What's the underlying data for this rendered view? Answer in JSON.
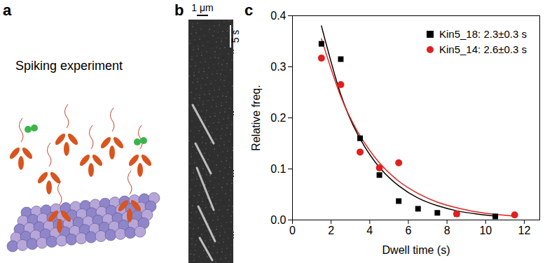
{
  "chart_data": {
    "type": "scatter",
    "x_label": "Dwell time (s)",
    "y_label": "Relative freq.",
    "series": [
      {
        "name": "Kin5_18: 2.3±0.3 s",
        "color": "#000000",
        "marker": "square",
        "x": [
          1.5,
          2.5,
          3.5,
          4.5,
          5.5,
          6.5,
          7.5,
          8.5,
          10.5
        ],
        "values": [
          0.345,
          0.315,
          0.16,
          0.088,
          0.037,
          0.022,
          0.014,
          0.012,
          0.007
        ],
        "fit": {
          "x": [
            1.5,
            2.5,
            3.5,
            4.5,
            5.5,
            6.5,
            7.5,
            8.5,
            9.5,
            10.5
          ],
          "values": [
            0.38,
            0.246,
            0.159,
            0.103,
            0.067,
            0.043,
            0.028,
            0.018,
            0.012,
            0.0076
          ]
        }
      },
      {
        "name": "Kin5_14: 2.6±0.3 s",
        "color": "#e0201e",
        "marker": "circle",
        "x": [
          1.5,
          2.5,
          3.5,
          4.5,
          5.5,
          8.5,
          11.5
        ],
        "values": [
          0.317,
          0.265,
          0.133,
          0.102,
          0.112,
          0.012,
          0.01
        ],
        "fit": {
          "x": [
            1.5,
            2.5,
            3.5,
            4.5,
            5.5,
            6.5,
            7.5,
            8.5,
            9.5,
            10.5,
            11.5
          ],
          "values": [
            0.355,
            0.242,
            0.165,
            0.112,
            0.076,
            0.052,
            0.035,
            0.024,
            0.016,
            0.011,
            0.0076
          ]
        }
      }
    ],
    "xlim": [
      0,
      12.8
    ],
    "xticks": [
      0,
      2,
      4,
      6,
      8,
      10,
      12
    ],
    "ylim": [
      0,
      0.4
    ],
    "yticks": [
      {
        "value": 0,
        "label": "0.0"
      },
      0.1,
      0.2,
      0.3,
      0.4
    ],
    "legend": "top-right"
  },
  "panels": [
    {
      "label": "a",
      "title": "Spiking experiment"
    },
    {
      "label": "b",
      "scale_bars": [
        "1 μm",
        "5 s"
      ]
    },
    {
      "label": "c"
    }
  ]
}
